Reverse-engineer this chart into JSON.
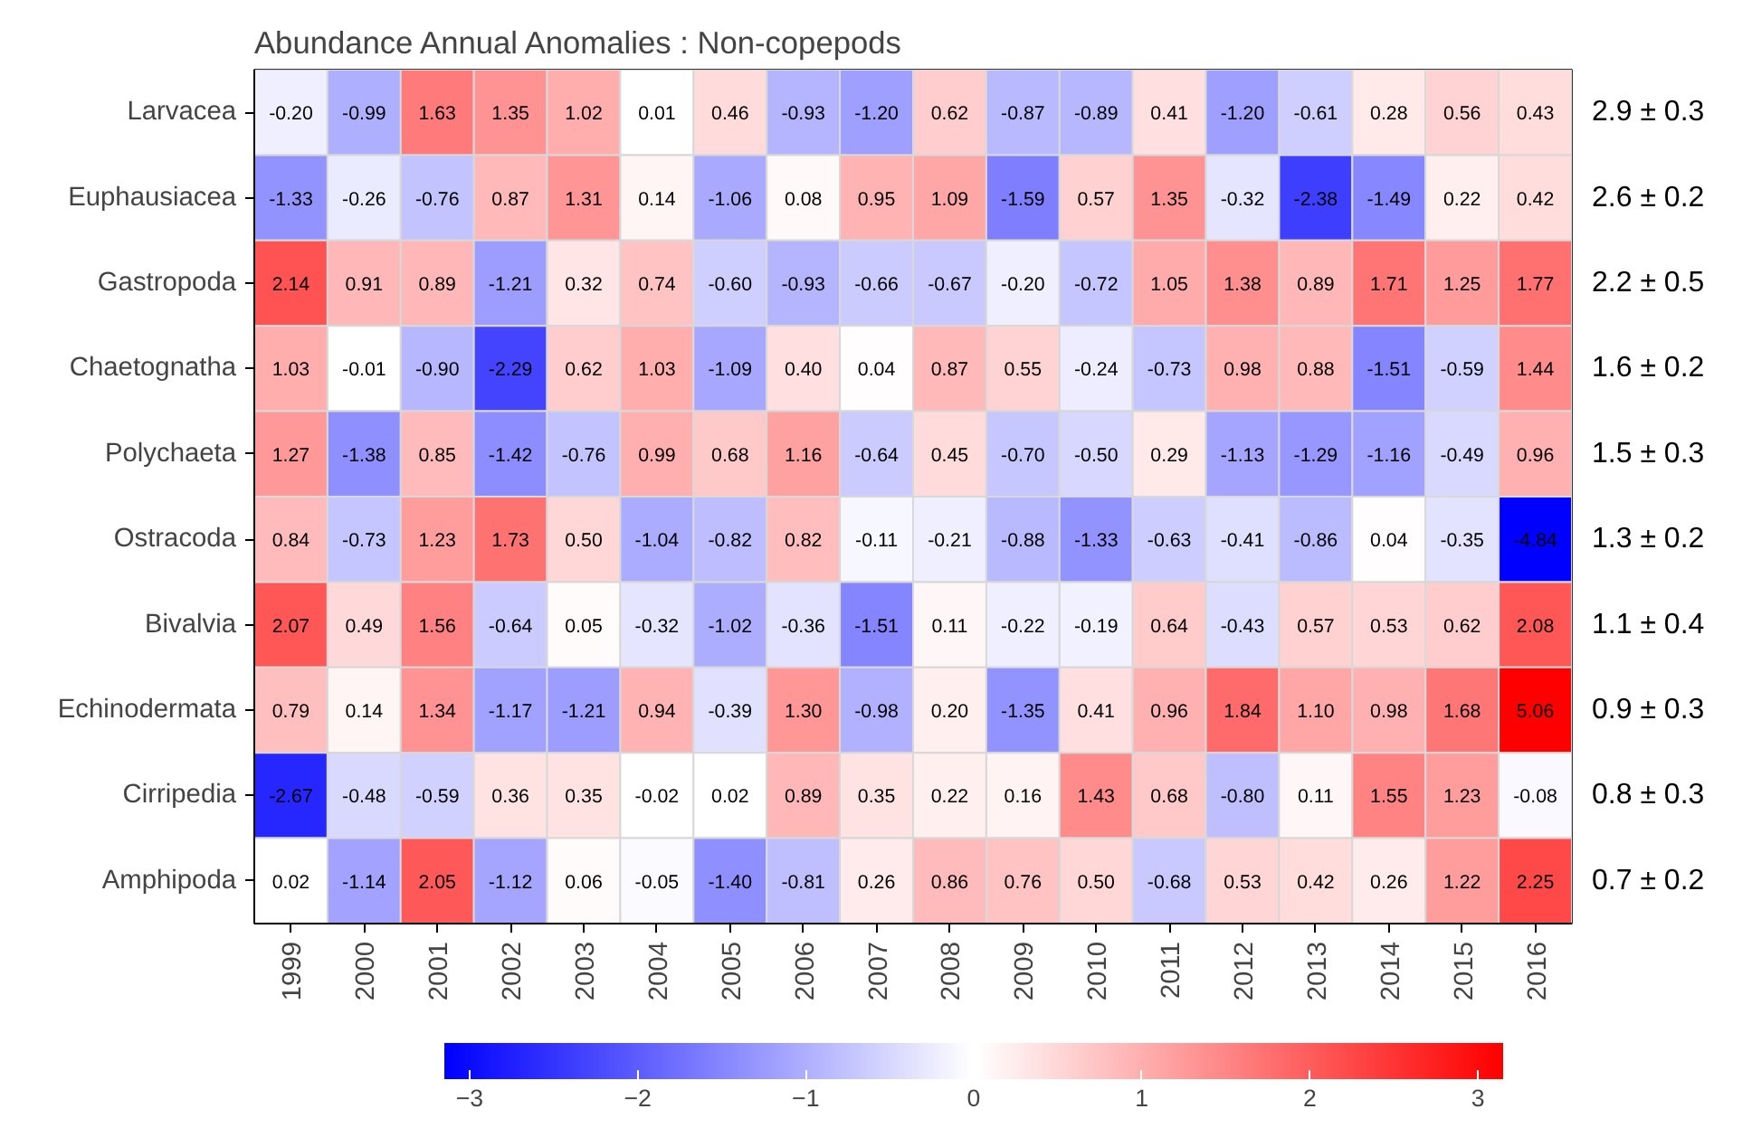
{
  "chart_data": {
    "type": "heatmap",
    "title": "Abundance Annual Anomalies : Non-copepods",
    "categories": [
      "1999",
      "2000",
      "2001",
      "2002",
      "2003",
      "2004",
      "2005",
      "2006",
      "2007",
      "2008",
      "2009",
      "2010",
      "2011",
      "2012",
      "2013",
      "2014",
      "2015",
      "2016"
    ],
    "y_categories": [
      "Larvacea",
      "Euphausiacea",
      "Gastropoda",
      "Chaetognatha",
      "Polychaeta",
      "Ostracoda",
      "Bivalvia",
      "Echinodermata",
      "Cirripedia",
      "Amphipoda"
    ],
    "y2_categories": [
      "2.9 ± 0.3",
      "2.6 ± 0.2",
      "2.2 ± 0.5",
      "1.6 ± 0.2",
      "1.5 ± 0.3",
      "1.3 ± 0.2",
      "1.1 ± 0.4",
      "0.9 ± 0.3",
      "0.8 ± 0.3",
      "0.7 ± 0.2"
    ],
    "cells": [
      [
        -0.2,
        -0.99,
        1.63,
        1.35,
        1.02,
        0.01,
        0.46,
        -0.93,
        -1.2,
        0.62,
        -0.87,
        -0.89,
        0.41,
        -1.2,
        -0.61,
        0.28,
        0.56,
        0.43
      ],
      [
        -1.33,
        -0.26,
        -0.76,
        0.87,
        1.31,
        0.14,
        -1.06,
        0.08,
        0.95,
        1.09,
        -1.59,
        0.57,
        1.35,
        -0.32,
        -2.38,
        -1.49,
        0.22,
        0.42
      ],
      [
        2.14,
        0.91,
        0.89,
        -1.21,
        0.32,
        0.74,
        -0.6,
        -0.93,
        -0.66,
        -0.67,
        -0.2,
        -0.72,
        1.05,
        1.38,
        0.89,
        1.71,
        1.25,
        1.77
      ],
      [
        1.03,
        -0.01,
        -0.9,
        -2.29,
        0.62,
        1.03,
        -1.09,
        0.4,
        0.04,
        0.87,
        0.55,
        -0.24,
        -0.73,
        0.98,
        0.88,
        -1.51,
        -0.59,
        1.44
      ],
      [
        1.27,
        -1.38,
        0.85,
        -1.42,
        -0.76,
        0.99,
        0.68,
        1.16,
        -0.64,
        0.45,
        -0.7,
        -0.5,
        0.29,
        -1.13,
        -1.29,
        -1.16,
        -0.49,
        0.96
      ],
      [
        0.84,
        -0.73,
        1.23,
        1.73,
        0.5,
        -1.04,
        -0.82,
        0.82,
        -0.11,
        -0.21,
        -0.88,
        -1.33,
        -0.63,
        -0.41,
        -0.86,
        0.04,
        -0.35,
        -4.84
      ],
      [
        2.07,
        0.49,
        1.56,
        -0.64,
        0.05,
        -0.32,
        -1.02,
        -0.36,
        -1.51,
        0.11,
        -0.22,
        -0.19,
        0.64,
        -0.43,
        0.57,
        0.53,
        0.62,
        2.08
      ],
      [
        0.79,
        0.14,
        1.34,
        -1.17,
        -1.21,
        0.94,
        -0.39,
        1.3,
        -0.98,
        0.2,
        -1.35,
        0.41,
        0.96,
        1.84,
        1.1,
        0.98,
        1.68,
        5.06
      ],
      [
        -2.67,
        -0.48,
        -0.59,
        0.36,
        0.35,
        -0.02,
        0.02,
        0.89,
        0.35,
        0.22,
        0.16,
        1.43,
        0.68,
        -0.8,
        0.11,
        1.55,
        1.23,
        -0.08
      ],
      [
        0.02,
        -1.14,
        2.05,
        -1.12,
        0.06,
        -0.05,
        -1.4,
        -0.81,
        0.26,
        0.86,
        0.76,
        0.5,
        -0.68,
        0.53,
        0.42,
        0.26,
        1.22,
        2.25
      ]
    ],
    "cell_labels": [
      [
        "-0.20",
        "-0.99",
        "1.63",
        "1.35",
        "1.02",
        "0.01",
        "0.46",
        "-0.93",
        "-1.20",
        "0.62",
        "-0.87",
        "-0.89",
        "0.41",
        "-1.20",
        "-0.61",
        "0.28",
        "0.56",
        "0.43"
      ],
      [
        "-1.33",
        "-0.26",
        "-0.76",
        "0.87",
        "1.31",
        "0.14",
        "-1.06",
        "0.08",
        "0.95",
        "1.09",
        "-1.59",
        "0.57",
        "1.35",
        "-0.32",
        "-2.38",
        "-1.49",
        "0.22",
        "0.42"
      ],
      [
        "2.14",
        "0.91",
        "0.89",
        "-1.21",
        "0.32",
        "0.74",
        "-0.60",
        "-0.93",
        "-0.66",
        "-0.67",
        "-0.20",
        "-0.72",
        "1.05",
        "1.38",
        "0.89",
        "1.71",
        "1.25",
        "1.77"
      ],
      [
        "1.03",
        "-0.01",
        "-0.90",
        "-2.29",
        "0.62",
        "1.03",
        "-1.09",
        "0.40",
        "0.04",
        "0.87",
        "0.55",
        "-0.24",
        "-0.73",
        "0.98",
        "0.88",
        "-1.51",
        "-0.59",
        "1.44"
      ],
      [
        "1.27",
        "-1.38",
        "0.85",
        "-1.42",
        "-0.76",
        "0.99",
        "0.68",
        "1.16",
        "-0.64",
        "0.45",
        "-0.70",
        "-0.50",
        "0.29",
        "-1.13",
        "-1.29",
        "-1.16",
        "-0.49",
        "0.96"
      ],
      [
        "0.84",
        "-0.73",
        "1.23",
        "1.73",
        "0.50",
        "-1.04",
        "-0.82",
        "0.82",
        "-0.11",
        "-0.21",
        "-0.88",
        "-1.33",
        "-0.63",
        "-0.41",
        "-0.86",
        "0.04",
        "-0.35",
        "-4.84"
      ],
      [
        "2.07",
        "0.49",
        "1.56",
        "-0.64",
        "0.05",
        "-0.32",
        "-1.02",
        "-0.36",
        "-1.51",
        "0.11",
        "-0.22",
        "-0.19",
        "0.64",
        "-0.43",
        "0.57",
        "0.53",
        "0.62",
        "2.08"
      ],
      [
        "0.79",
        "0.14",
        "1.34",
        "-1.17",
        "-1.21",
        "0.94",
        "-0.39",
        "1.30",
        "-0.98",
        "0.20",
        "-1.35",
        "0.41",
        "0.96",
        "1.84",
        "1.10",
        "0.98",
        "1.68",
        "5.06"
      ],
      [
        "-2.67",
        "-0.48",
        "-0.59",
        "0.36",
        "0.35",
        "-0.02",
        "0.02",
        "0.89",
        "0.35",
        "0.22",
        "0.16",
        "1.43",
        "0.68",
        "-0.80",
        "0.11",
        "1.55",
        "1.23",
        "-0.08"
      ],
      [
        "0.02",
        "-1.14",
        "2.05",
        "-1.12",
        "0.06",
        "-0.05",
        "-1.40",
        "-0.81",
        "0.26",
        "0.86",
        "0.76",
        "0.50",
        "-0.68",
        "0.53",
        "0.42",
        "0.26",
        "1.22",
        "2.25"
      ]
    ],
    "clim": [
      -3.15,
      3.15
    ],
    "cticks": [
      -3,
      -2,
      -1,
      0,
      1,
      2,
      3
    ]
  }
}
